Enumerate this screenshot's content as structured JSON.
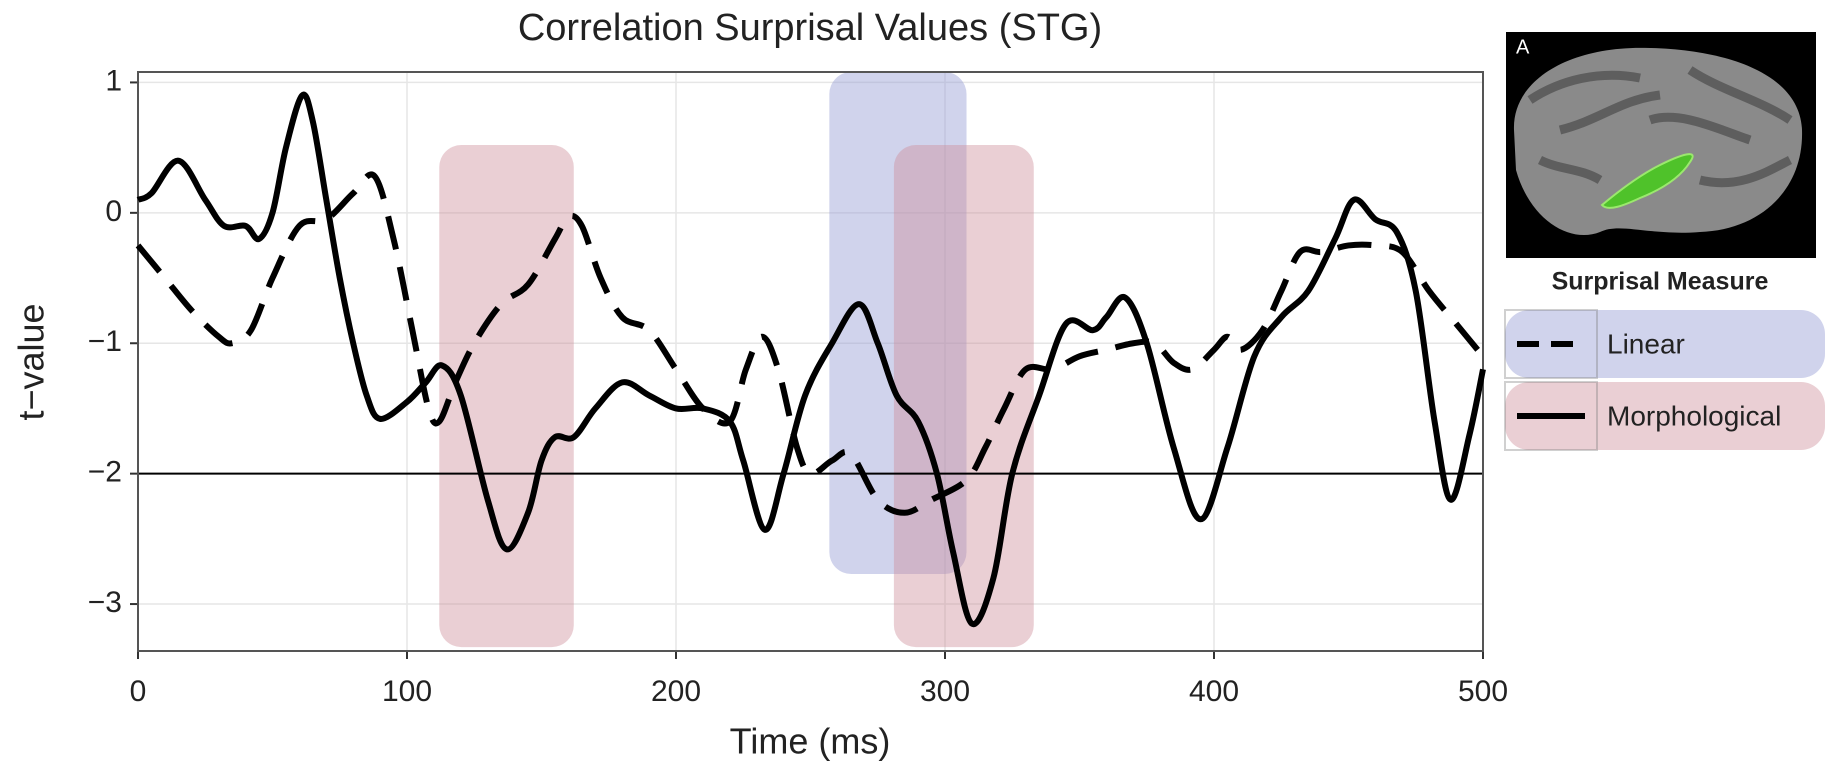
{
  "chart_data": {
    "type": "line",
    "title": "Correlation Surprisal Values (STG)",
    "xlabel": "Time (ms)",
    "ylabel": "t−value",
    "xlim": [
      0,
      500
    ],
    "ylim": [
      -3.36,
      1.08
    ],
    "xticks": [
      0,
      100,
      200,
      300,
      400,
      500
    ],
    "yticks": [
      {
        "value": -3,
        "label": "−3"
      },
      {
        "value": -2,
        "label": "−2"
      },
      {
        "value": -1,
        "label": "−1"
      },
      0,
      1
    ],
    "grid": true,
    "reference_line": -2,
    "regions": [
      {
        "x": [
          112,
          162
        ],
        "y": [
          -3.33,
          0.52
        ],
        "color": "rgba(205,140,152,0.42)"
      },
      {
        "x": [
          257,
          308
        ],
        "y": [
          -2.77,
          1.08
        ],
        "color": "rgba(150,158,212,0.45)"
      },
      {
        "x": [
          281,
          333
        ],
        "y": [
          -3.33,
          0.52
        ],
        "color": "rgba(205,140,152,0.42)"
      }
    ],
    "legend_title": "Surprisal Measure",
    "panel_label": "A",
    "series": [
      {
        "name": "Linear",
        "color": "#000000",
        "line_style": "dashed",
        "legend_fill": "rgba(150,158,212,0.45)",
        "x": [
          0,
          10,
          20,
          30,
          35,
          42,
          50,
          60,
          70,
          80,
          88,
          95,
          102,
          108,
          112,
          118,
          125,
          135,
          145,
          155,
          160,
          165,
          172,
          180,
          190,
          200,
          210,
          220,
          226,
          232,
          238,
          245,
          250,
          258,
          265,
          275,
          285,
          295,
          308,
          315,
          322,
          330,
          340,
          350,
          360,
          370,
          378,
          385,
          392,
          400,
          405,
          410,
          418,
          425,
          432,
          440,
          450,
          460,
          470,
          480,
          490,
          500
        ],
        "values": [
          -0.25,
          -0.5,
          -0.75,
          -0.95,
          -1.0,
          -0.9,
          -0.5,
          -0.1,
          -0.05,
          0.15,
          0.28,
          -0.2,
          -0.9,
          -1.5,
          -1.6,
          -1.3,
          -1.0,
          -0.7,
          -0.55,
          -0.2,
          -0.03,
          -0.1,
          -0.5,
          -0.8,
          -0.9,
          -1.2,
          -1.5,
          -1.6,
          -1.2,
          -0.95,
          -1.2,
          -1.8,
          -2.0,
          -1.9,
          -1.85,
          -2.2,
          -2.3,
          -2.2,
          -2.05,
          -1.8,
          -1.5,
          -1.2,
          -1.2,
          -1.1,
          -1.05,
          -1.0,
          -1.0,
          -1.15,
          -1.2,
          -1.05,
          -0.95,
          -1.05,
          -0.9,
          -0.6,
          -0.3,
          -0.3,
          -0.25,
          -0.25,
          -0.3,
          -0.6,
          -0.85,
          -1.1
        ]
      },
      {
        "name": "Morphological",
        "color": "#000000",
        "line_style": "solid",
        "legend_fill": "rgba(205,140,152,0.42)",
        "x": [
          0,
          5,
          15,
          25,
          32,
          40,
          45,
          50,
          55,
          61,
          65,
          70,
          75,
          80,
          85,
          90,
          100,
          107,
          113,
          120,
          130,
          137,
          145,
          150,
          155,
          162,
          170,
          180,
          190,
          200,
          210,
          220,
          225,
          233,
          240,
          248,
          258,
          268,
          275,
          282,
          290,
          297,
          303,
          310,
          318,
          325,
          335,
          345,
          355,
          360,
          367,
          375,
          385,
          395,
          405,
          415,
          425,
          435,
          445,
          452,
          460,
          468,
          475,
          482,
          488,
          495,
          500
        ],
        "values": [
          0.1,
          0.15,
          0.4,
          0.1,
          -0.1,
          -0.1,
          -0.2,
          0.0,
          0.5,
          0.9,
          0.7,
          0.1,
          -0.5,
          -1.0,
          -1.4,
          -1.58,
          -1.45,
          -1.3,
          -1.17,
          -1.4,
          -2.2,
          -2.58,
          -2.3,
          -1.9,
          -1.72,
          -1.72,
          -1.5,
          -1.3,
          -1.4,
          -1.5,
          -1.5,
          -1.6,
          -1.9,
          -2.43,
          -2.0,
          -1.4,
          -1.0,
          -0.7,
          -1.0,
          -1.4,
          -1.6,
          -2.0,
          -2.6,
          -3.15,
          -2.8,
          -2.0,
          -1.4,
          -0.85,
          -0.9,
          -0.8,
          -0.65,
          -1.0,
          -1.8,
          -2.35,
          -1.8,
          -1.1,
          -0.8,
          -0.6,
          -0.2,
          0.1,
          -0.05,
          -0.15,
          -0.6,
          -1.6,
          -2.2,
          -1.7,
          -1.2
        ]
      }
    ]
  }
}
